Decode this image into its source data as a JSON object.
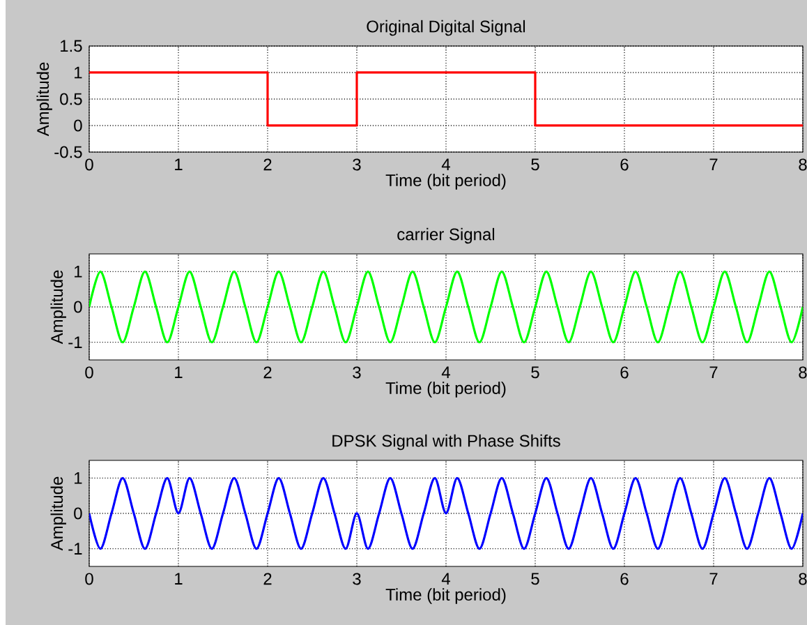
{
  "chart_data": [
    {
      "type": "step",
      "title": "Original Digital Signal",
      "xlabel": "Time (bit period)",
      "ylabel": "Amplitude",
      "color": "#ff0000",
      "grid": true,
      "x": [
        0,
        1,
        2,
        3,
        4,
        5,
        6,
        7,
        8
      ],
      "values": [
        1,
        1,
        0,
        1,
        1,
        0,
        0,
        0,
        0
      ],
      "xlim": [
        0,
        8
      ],
      "xticks": [
        0,
        1,
        2,
        3,
        4,
        5,
        6,
        7,
        8
      ],
      "ylim": [
        -0.5,
        1.5
      ],
      "yticks": [
        -0.5,
        0,
        0.5,
        1,
        1.5
      ]
    },
    {
      "type": "line",
      "title": "carrier Signal",
      "xlabel": "Time (bit period)",
      "ylabel": "Amplitude",
      "color": "#00ff00",
      "grid": true,
      "x": [
        0,
        0.125,
        0.25,
        0.375,
        0.5,
        0.625,
        0.75,
        0.875,
        1,
        1.125,
        1.25,
        1.375,
        1.5,
        1.625,
        1.75,
        1.875,
        2,
        2.125,
        2.25,
        2.375,
        2.5,
        2.625,
        2.75,
        2.875,
        3,
        3.125,
        3.25,
        3.375,
        3.5,
        3.625,
        3.75,
        3.875,
        4,
        4.125,
        4.25,
        4.375,
        4.5,
        4.625,
        4.75,
        4.875,
        5,
        5.125,
        5.25,
        5.375,
        5.5,
        5.625,
        5.75,
        5.875,
        6,
        6.125,
        6.25,
        6.375,
        6.5,
        6.625,
        6.75,
        6.875,
        7,
        7.125,
        7.25,
        7.375,
        7.5,
        7.625,
        7.75,
        7.875,
        8
      ],
      "values": [
        0,
        1,
        0,
        -1,
        0,
        1,
        0,
        -1,
        0,
        1,
        0,
        -1,
        0,
        1,
        0,
        -1,
        0,
        1,
        0,
        -1,
        0,
        1,
        0,
        -1,
        0,
        1,
        0,
        -1,
        0,
        1,
        0,
        -1,
        0,
        1,
        0,
        -1,
        0,
        1,
        0,
        -1,
        0,
        1,
        0,
        -1,
        0,
        1,
        0,
        -1,
        0,
        1,
        0,
        -1,
        0,
        1,
        0,
        -1,
        0,
        1,
        0,
        -1,
        0,
        1,
        0,
        -1,
        0
      ],
      "xlim": [
        0,
        8
      ],
      "xticks": [
        0,
        1,
        2,
        3,
        4,
        5,
        6,
        7,
        8
      ],
      "ylim": [
        -1.5,
        1.5
      ],
      "yticks": [
        -1,
        0,
        1
      ]
    },
    {
      "type": "line",
      "title": "DPSK Signal with Phase Shifts",
      "xlabel": "Time (bit period)",
      "ylabel": "Amplitude",
      "color": "#0000ff",
      "grid": true,
      "x": [
        0,
        0.125,
        0.25,
        0.375,
        0.5,
        0.625,
        0.75,
        0.875,
        1,
        1.125,
        1.25,
        1.375,
        1.5,
        1.625,
        1.75,
        1.875,
        2,
        2.125,
        2.25,
        2.375,
        2.5,
        2.625,
        2.75,
        2.875,
        3,
        3.125,
        3.25,
        3.375,
        3.5,
        3.625,
        3.75,
        3.875,
        4,
        4.125,
        4.25,
        4.375,
        4.5,
        4.625,
        4.75,
        4.875,
        5,
        5.125,
        5.25,
        5.375,
        5.5,
        5.625,
        5.75,
        5.875,
        6,
        6.125,
        6.25,
        6.375,
        6.5,
        6.625,
        6.75,
        6.875,
        7,
        7.125,
        7.25,
        7.375,
        7.5,
        7.625,
        7.75,
        7.875,
        8
      ],
      "values": [
        0,
        -1,
        0,
        1,
        0,
        -1,
        0,
        1,
        0,
        1,
        0,
        -1,
        0,
        1,
        0,
        -1,
        0,
        1,
        0,
        -1,
        0,
        1,
        0,
        -1,
        0,
        -1,
        0,
        1,
        0,
        -1,
        0,
        1,
        0,
        1,
        0,
        -1,
        0,
        1,
        0,
        -1,
        0,
        1,
        0,
        -1,
        0,
        1,
        0,
        -1,
        0,
        1,
        0,
        -1,
        0,
        1,
        0,
        -1,
        0,
        1,
        0,
        -1,
        0,
        1,
        0,
        -1,
        0
      ],
      "xlim": [
        0,
        8
      ],
      "xticks": [
        0,
        1,
        2,
        3,
        4,
        5,
        6,
        7,
        8
      ],
      "ylim": [
        -1.5,
        1.5
      ],
      "yticks": [
        -1,
        0,
        1
      ]
    }
  ]
}
